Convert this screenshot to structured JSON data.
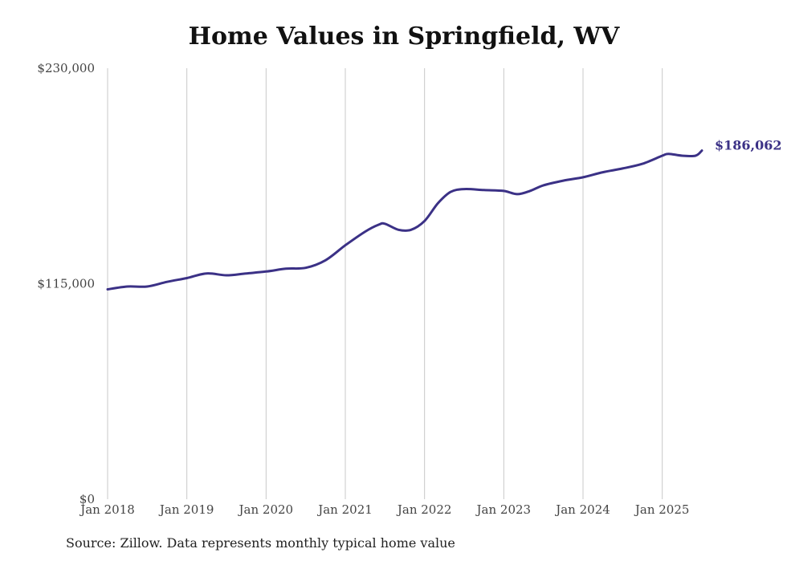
{
  "chart_data": {
    "type": "line",
    "title": "Home Values in Springfield, WV",
    "xlabel": "",
    "ylabel": "",
    "ylim": [
      0,
      230000
    ],
    "yticks": [
      "$0",
      "$115,000",
      "$230,000"
    ],
    "yticks_values": [
      0,
      115000,
      230000
    ],
    "xticks": [
      "Jan 2018",
      "Jan 2019",
      "Jan 2020",
      "Jan 2021",
      "Jan 2022",
      "Jan 2023",
      "Jan 2024",
      "Jan 2025"
    ],
    "xticks_values": [
      2018,
      2019,
      2020,
      2021,
      2022,
      2023,
      2024,
      2025
    ],
    "xlim": [
      2018,
      2025.5
    ],
    "grid": "vertical",
    "line_color": "#3b3186",
    "end_label": "$186,062",
    "series": [
      {
        "x": [
          2018.0,
          2018.25,
          2018.5,
          2018.75,
          2019.0,
          2019.25,
          2019.5,
          2019.75,
          2020.0,
          2020.25,
          2020.5,
          2020.75,
          2021.0,
          2021.25,
          2021.42,
          2021.5,
          2021.67,
          2021.83,
          2022.0,
          2022.17,
          2022.33,
          2022.5,
          2022.75,
          2023.0,
          2023.17,
          2023.33,
          2023.5,
          2023.75,
          2024.0,
          2024.25,
          2024.5,
          2024.75,
          2025.0,
          2025.08,
          2025.25,
          2025.42,
          2025.5
        ],
        "y": [
          112000,
          113500,
          113500,
          116000,
          118000,
          120500,
          119500,
          120500,
          121500,
          123000,
          123500,
          127500,
          135500,
          142800,
          146500,
          147000,
          143800,
          143800,
          148500,
          158000,
          164000,
          165500,
          165000,
          164500,
          162800,
          164500,
          167500,
          170000,
          171800,
          174500,
          176500,
          179000,
          183300,
          184300,
          183300,
          183300,
          186062
        ]
      }
    ]
  },
  "source_text": "Source: Zillow. Data represents monthly typical home value"
}
